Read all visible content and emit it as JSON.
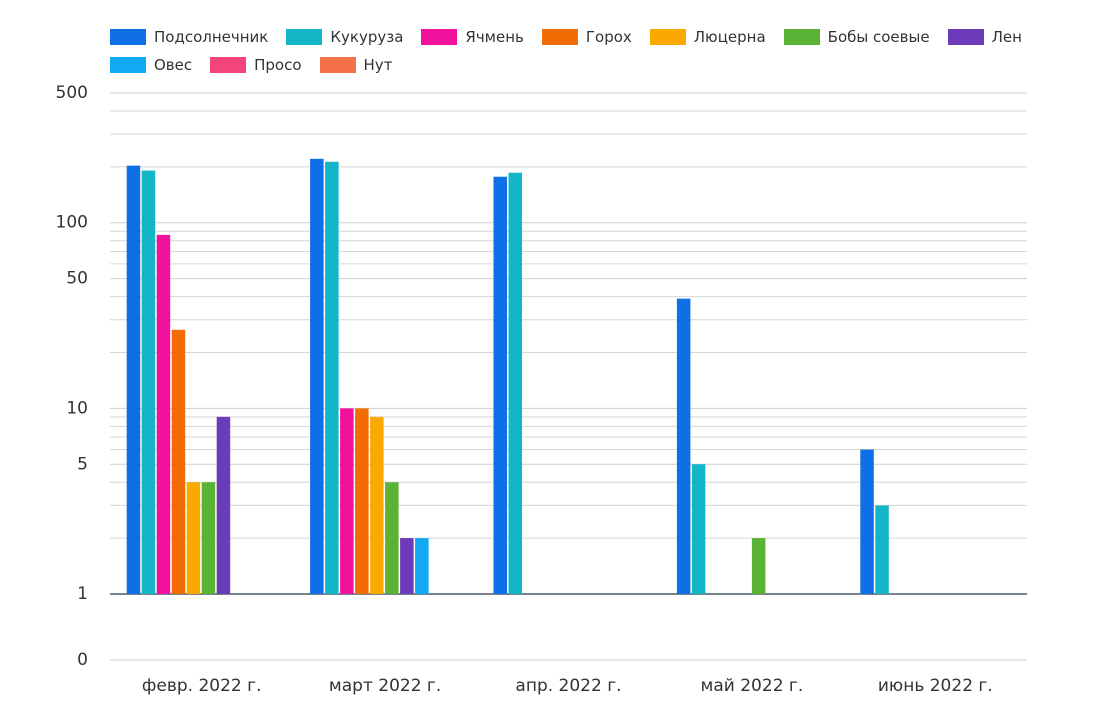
{
  "chart_data": {
    "type": "bar",
    "categories": [
      "февр. 2022 г.",
      "март 2022 г.",
      "апр. 2022 г.",
      "май 2022 г.",
      "июнь 2022 г."
    ],
    "series": [
      {
        "name": "Подсолнечник",
        "color": "#0f6fe6",
        "values": [
          203,
          221,
          177,
          39,
          6
        ]
      },
      {
        "name": "Кукуруза",
        "color": "#13b6c6",
        "values": [
          191,
          213,
          186,
          5,
          3
        ]
      },
      {
        "name": "Ячмень",
        "color": "#f0129c",
        "values": [
          86,
          10,
          1,
          null,
          null
        ]
      },
      {
        "name": "Горох",
        "color": "#f26c05",
        "values": [
          26.5,
          10,
          null,
          null,
          null
        ]
      },
      {
        "name": "Люцерна",
        "color": "#f9a900",
        "values": [
          4,
          9,
          null,
          null,
          null
        ]
      },
      {
        "name": "Бобы соевые",
        "color": "#5bb336",
        "values": [
          4,
          4,
          null,
          2,
          null
        ]
      },
      {
        "name": "Лен",
        "color": "#6c3bb9",
        "values": [
          9,
          2,
          null,
          null,
          null
        ]
      },
      {
        "name": "Овес",
        "color": "#11a9f2",
        "values": [
          null,
          2,
          null,
          null,
          null
        ]
      },
      {
        "name": "Просо",
        "color": "#f4447c",
        "values": [
          null,
          null,
          null,
          null,
          null
        ]
      },
      {
        "name": "Нут",
        "color": "#f47049",
        "values": [
          null,
          null,
          null,
          null,
          null
        ]
      }
    ],
    "log_scale": true,
    "ylim": [
      0,
      500
    ],
    "yticks": [
      0,
      1,
      5,
      10,
      50,
      100,
      500
    ],
    "yminorticks": [
      2,
      3,
      4,
      6,
      7,
      8,
      9,
      20,
      30,
      40,
      60,
      70,
      80,
      90,
      200,
      300,
      400
    ],
    "grid": true
  }
}
